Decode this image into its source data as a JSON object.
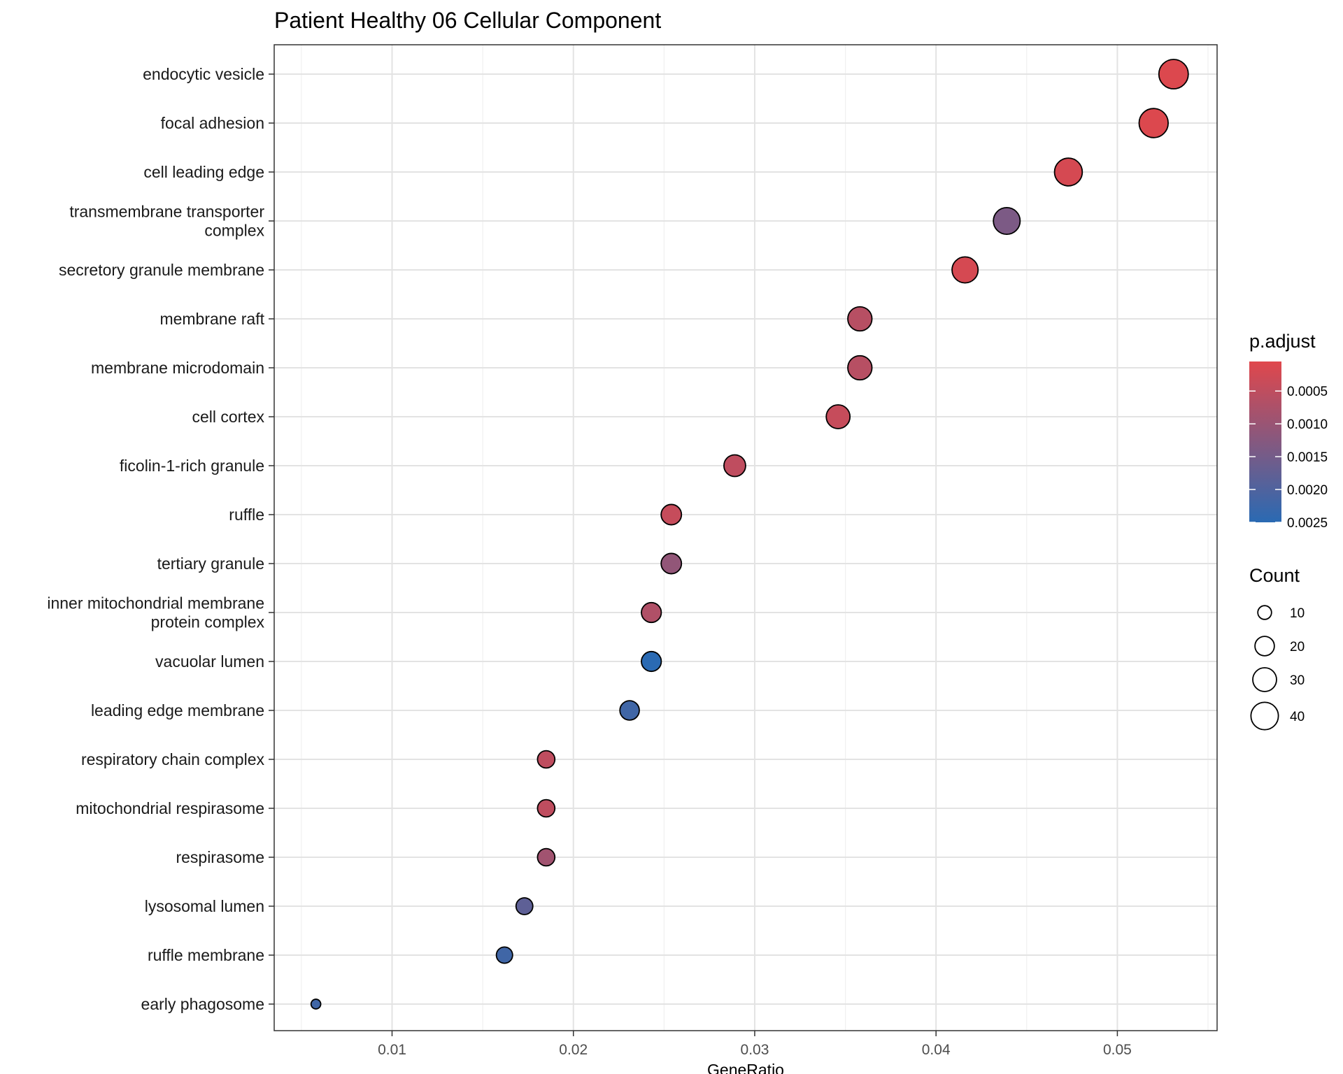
{
  "chart_data": {
    "type": "scatter",
    "title": "Patient Healthy 06 Cellular Component",
    "xlabel": "GeneRatio",
    "ylabel": "",
    "xlim": [
      0.0035,
      0.0555
    ],
    "x_ticks": [
      "0.01",
      "0.02",
      "0.03",
      "0.04",
      "0.05"
    ],
    "x_tick_values": [
      0.01,
      0.02,
      0.03,
      0.04,
      0.05
    ],
    "grid": true,
    "legend_position": "right",
    "color_legend": {
      "title": "p.adjust",
      "ticks": [
        "0.0005",
        "0.0010",
        "0.0015",
        "0.0020",
        "0.0025"
      ],
      "tick_values": [
        0.0005,
        0.001,
        0.0015,
        0.002,
        0.0025
      ],
      "range": [
        5e-05,
        0.0025
      ],
      "low_color": "#e0474c",
      "high_color": "#2a6ab3"
    },
    "size_legend": {
      "title": "Count",
      "ticks": [
        "10",
        "20",
        "30",
        "40"
      ],
      "tick_values": [
        10,
        20,
        30,
        40
      ]
    },
    "points": [
      {
        "term": "endocytic vesicle",
        "gene_ratio": 0.0531,
        "count": 46,
        "p_adjust": 0.0001
      },
      {
        "term": "focal adhesion",
        "gene_ratio": 0.052,
        "count": 45,
        "p_adjust": 0.0001
      },
      {
        "term": "cell leading edge",
        "gene_ratio": 0.0473,
        "count": 41,
        "p_adjust": 0.0002
      },
      {
        "term": "transmembrane transporter\ncomplex",
        "gene_ratio": 0.0439,
        "count": 38,
        "p_adjust": 0.0014
      },
      {
        "term": "secretory granule membrane",
        "gene_ratio": 0.0416,
        "count": 36,
        "p_adjust": 0.0002
      },
      {
        "term": "membrane raft",
        "gene_ratio": 0.0358,
        "count": 31,
        "p_adjust": 0.0006
      },
      {
        "term": "membrane microdomain",
        "gene_ratio": 0.0358,
        "count": 31,
        "p_adjust": 0.0006
      },
      {
        "term": "cell cortex",
        "gene_ratio": 0.0346,
        "count": 30,
        "p_adjust": 0.0004
      },
      {
        "term": "ficolin-1-rich granule",
        "gene_ratio": 0.0289,
        "count": 25,
        "p_adjust": 0.0005
      },
      {
        "term": "ruffle",
        "gene_ratio": 0.0254,
        "count": 22,
        "p_adjust": 0.0004
      },
      {
        "term": "tertiary granule",
        "gene_ratio": 0.0254,
        "count": 22,
        "p_adjust": 0.0011
      },
      {
        "term": "inner mitochondrial membrane\nprotein complex",
        "gene_ratio": 0.0243,
        "count": 21,
        "p_adjust": 0.0007
      },
      {
        "term": "vacuolar lumen",
        "gene_ratio": 0.0243,
        "count": 21,
        "p_adjust": 0.0025
      },
      {
        "term": "leading edge membrane",
        "gene_ratio": 0.0231,
        "count": 20,
        "p_adjust": 0.0022
      },
      {
        "term": "respiratory chain complex",
        "gene_ratio": 0.0185,
        "count": 16,
        "p_adjust": 0.0005
      },
      {
        "term": "mitochondrial respirasome",
        "gene_ratio": 0.0185,
        "count": 16,
        "p_adjust": 0.0005
      },
      {
        "term": "respirasome",
        "gene_ratio": 0.0185,
        "count": 16,
        "p_adjust": 0.0009
      },
      {
        "term": "lysosomal lumen",
        "gene_ratio": 0.0173,
        "count": 15,
        "p_adjust": 0.0018
      },
      {
        "term": "ruffle membrane",
        "gene_ratio": 0.0162,
        "count": 14,
        "p_adjust": 0.0022
      },
      {
        "term": "early phagosome",
        "gene_ratio": 0.0058,
        "count": 5,
        "p_adjust": 0.0022
      }
    ]
  }
}
